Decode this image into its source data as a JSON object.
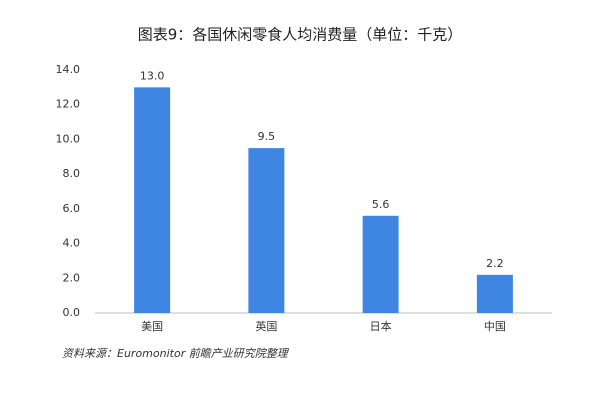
{
  "chart_data": {
    "type": "bar",
    "title": "图表9：各国休闲零食人均消费量（单位：千克）",
    "categories": [
      "美国",
      "英国",
      "日本",
      "中国"
    ],
    "values": [
      13.0,
      9.5,
      5.6,
      2.2
    ],
    "value_labels": [
      "13.0",
      "9.5",
      "5.6",
      "2.2"
    ],
    "color": "#3f86e2",
    "ylim": [
      0,
      14
    ],
    "yticks": [
      {
        "value": 0,
        "label": "0.0"
      },
      {
        "value": 2,
        "label": "2.0"
      },
      {
        "value": 4,
        "label": "4.0"
      },
      {
        "value": 6,
        "label": "6.0"
      },
      {
        "value": 8,
        "label": "8.0"
      },
      {
        "value": 10,
        "label": "10.0"
      },
      {
        "value": 12,
        "label": "12.0"
      },
      {
        "value": 14,
        "label": "14.0"
      }
    ],
    "grid": false,
    "source": "资料来源：Euromonitor 前瞻产业研究院整理"
  }
}
